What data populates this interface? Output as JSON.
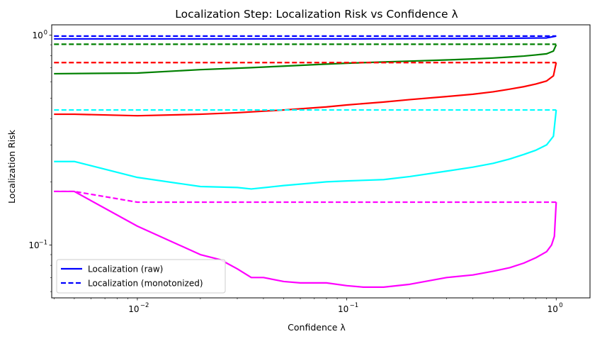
{
  "chart_data": {
    "type": "line",
    "title": "Localization Step: Localization Risk vs Confidence λ",
    "xlabel": "Confidence λ",
    "ylabel": "Localization Risk",
    "xscale": "log",
    "yscale": "log",
    "xlim": [
      0.0039,
      1.45
    ],
    "ylim": [
      0.056,
      1.12
    ],
    "grid": false,
    "xticks": [
      {
        "value": 0.01,
        "base": "10",
        "exp": "−2"
      },
      {
        "value": 0.1,
        "base": "10",
        "exp": "−1"
      },
      {
        "value": 1,
        "base": "10",
        "exp": "0"
      }
    ],
    "yticks": [
      {
        "value": 0.1,
        "base": "10",
        "exp": "−1"
      },
      {
        "value": 1,
        "base": "10",
        "exp": "0"
      }
    ],
    "legend": {
      "position": "lower-left",
      "entries": [
        {
          "label": "Localization (raw)",
          "color": "#0000ff",
          "style": "solid"
        },
        {
          "label": "Localization (monotonized)",
          "color": "#0000ff",
          "style": "dashed"
        }
      ]
    },
    "series": [
      {
        "name": "blue-raw",
        "color": "#0000ff",
        "style": "solid",
        "x": [
          0.004,
          0.01,
          0.1,
          0.5,
          0.9,
          1.0
        ],
        "y": [
          0.96,
          0.96,
          0.96,
          0.965,
          0.97,
          0.99
        ]
      },
      {
        "name": "blue-monotonized",
        "color": "#0000ff",
        "style": "dashed",
        "x": [
          0.004,
          1.0
        ],
        "y": [
          0.99,
          0.99
        ]
      },
      {
        "name": "green-raw",
        "color": "#008000",
        "style": "solid",
        "x": [
          0.004,
          0.01,
          0.02,
          0.035,
          0.05,
          0.08,
          0.1,
          0.15,
          0.2,
          0.3,
          0.4,
          0.5,
          0.6,
          0.7,
          0.8,
          0.9,
          0.97,
          1.0
        ],
        "y": [
          0.655,
          0.66,
          0.685,
          0.7,
          0.712,
          0.728,
          0.735,
          0.745,
          0.752,
          0.762,
          0.77,
          0.778,
          0.787,
          0.795,
          0.805,
          0.815,
          0.84,
          0.9
        ]
      },
      {
        "name": "green-monotonized",
        "color": "#008000",
        "style": "dashed",
        "x": [
          0.004,
          1.0
        ],
        "y": [
          0.905,
          0.905
        ]
      },
      {
        "name": "red-raw",
        "color": "#ff0000",
        "style": "solid",
        "x": [
          0.004,
          0.005,
          0.01,
          0.02,
          0.03,
          0.05,
          0.08,
          0.1,
          0.15,
          0.2,
          0.3,
          0.4,
          0.5,
          0.6,
          0.7,
          0.8,
          0.9,
          0.97,
          1.0
        ],
        "y": [
          0.42,
          0.42,
          0.413,
          0.42,
          0.427,
          0.44,
          0.455,
          0.465,
          0.48,
          0.493,
          0.51,
          0.523,
          0.537,
          0.553,
          0.568,
          0.585,
          0.605,
          0.64,
          0.74
        ]
      },
      {
        "name": "red-monotonized",
        "color": "#ff0000",
        "style": "dashed",
        "x": [
          0.004,
          1.0
        ],
        "y": [
          0.74,
          0.74
        ]
      },
      {
        "name": "cyan-raw",
        "color": "#00ffff",
        "style": "solid",
        "x": [
          0.004,
          0.005,
          0.01,
          0.02,
          0.03,
          0.035,
          0.05,
          0.08,
          0.1,
          0.15,
          0.2,
          0.3,
          0.4,
          0.5,
          0.6,
          0.7,
          0.8,
          0.9,
          0.97,
          1.0
        ],
        "y": [
          0.25,
          0.25,
          0.21,
          0.19,
          0.188,
          0.185,
          0.192,
          0.2,
          0.202,
          0.205,
          0.212,
          0.225,
          0.235,
          0.245,
          0.257,
          0.27,
          0.283,
          0.3,
          0.33,
          0.44
        ]
      },
      {
        "name": "cyan-monotonized",
        "color": "#00ffff",
        "style": "dashed",
        "x": [
          0.004,
          1.0
        ],
        "y": [
          0.44,
          0.44
        ]
      },
      {
        "name": "magenta-raw",
        "color": "#ff00ff",
        "style": "solid",
        "x": [
          0.004,
          0.005,
          0.01,
          0.02,
          0.025,
          0.03,
          0.035,
          0.04,
          0.05,
          0.06,
          0.08,
          0.1,
          0.12,
          0.15,
          0.2,
          0.3,
          0.4,
          0.5,
          0.6,
          0.7,
          0.8,
          0.9,
          0.95,
          0.98,
          1.0
        ],
        "y": [
          0.18,
          0.18,
          0.123,
          0.09,
          0.085,
          0.077,
          0.07,
          0.07,
          0.067,
          0.066,
          0.066,
          0.064,
          0.063,
          0.063,
          0.065,
          0.07,
          0.072,
          0.075,
          0.078,
          0.082,
          0.087,
          0.093,
          0.1,
          0.11,
          0.16
        ]
      },
      {
        "name": "magenta-monotonized",
        "color": "#ff00ff",
        "style": "dashed",
        "x": [
          0.004,
          0.005,
          0.01,
          1.0
        ],
        "y": [
          0.18,
          0.18,
          0.16,
          0.16
        ]
      }
    ]
  }
}
